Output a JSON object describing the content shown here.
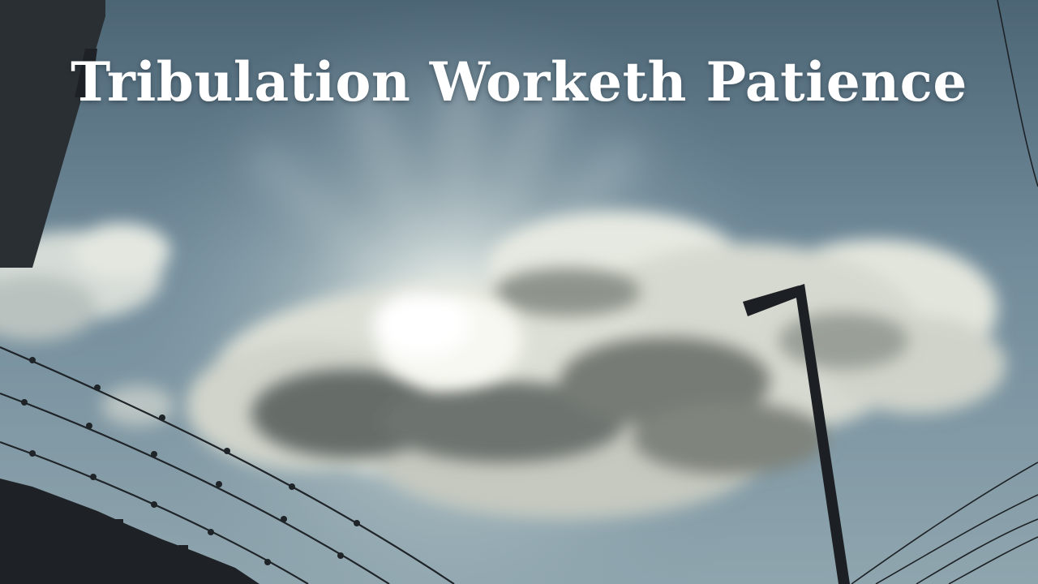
{
  "title": "Tribulation Worketh Patience",
  "scene": {
    "subject": "backlit cumulus cloud with sun rays",
    "colors": {
      "sky_top": "#4f6878",
      "sky_mid": "#7f98a6",
      "sun_glow": "#f4f6ef",
      "cloud_shadow": "#6d7570",
      "cloud_highlight": "#e8ebe2",
      "silhouette": "#1e2226"
    }
  }
}
